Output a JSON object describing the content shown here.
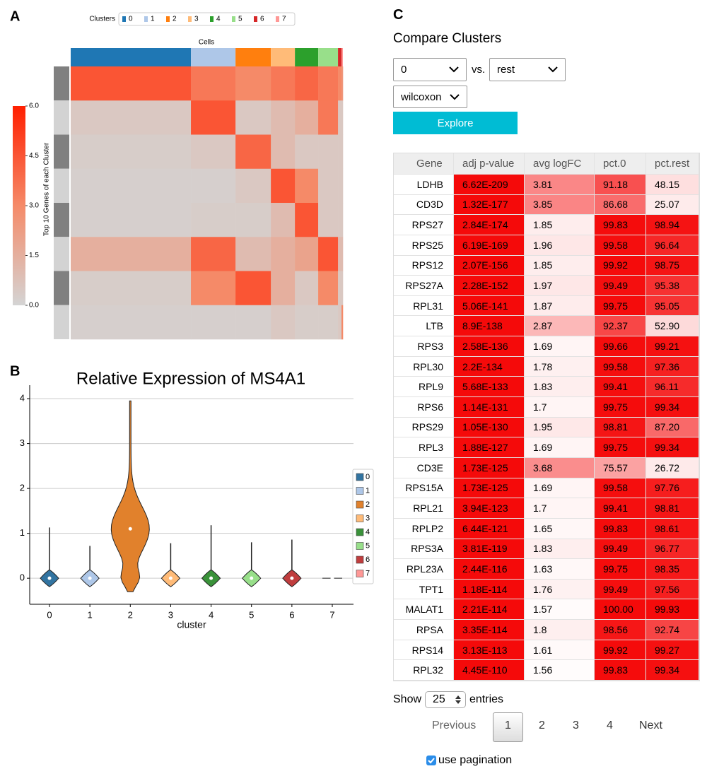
{
  "panel_labels": [
    "A",
    "B",
    "C"
  ],
  "chart_data": [
    {
      "type": "heatmap",
      "x_label": "Cells",
      "y_label": "Top 10 Genes of each Cluster",
      "legend_title": "Clusters",
      "clusters": [
        "0",
        "1",
        "2",
        "3",
        "4",
        "5",
        "6",
        "7"
      ],
      "colors": [
        "#1f77b4",
        "#aec7e8",
        "#ff7f0e",
        "#ffbb78",
        "#2ca02c",
        "#98df8a",
        "#d62728",
        "#ff9896"
      ],
      "cluster_sizes": [
        1105,
        410,
        325,
        221,
        214,
        182,
        32,
        13
      ],
      "values": [
        [
          4.5,
          3.5,
          3.0,
          3.5,
          4.0,
          3.5,
          3.0,
          2.5
        ],
        [
          0.5,
          4.5,
          0.5,
          1.0,
          1.5,
          3.5,
          0.5,
          0.5
        ],
        [
          0.3,
          0.5,
          4.0,
          1.0,
          0.5,
          0.5,
          0.5,
          0.5
        ],
        [
          0.2,
          0.2,
          0.5,
          4.5,
          3.0,
          0.5,
          0.5,
          0.5
        ],
        [
          0.2,
          0.3,
          0.3,
          1.0,
          4.5,
          0.5,
          0.5,
          0.5
        ],
        [
          1.5,
          4.0,
          1.0,
          1.5,
          2.0,
          4.5,
          1.0,
          1.0
        ],
        [
          0.3,
          3.0,
          4.5,
          1.5,
          0.5,
          3.0,
          0.5,
          0.5
        ],
        [
          0.2,
          0.2,
          0.2,
          0.5,
          0.3,
          0.3,
          0.5,
          3.0
        ]
      ],
      "colorbar_lim": [
        0,
        6
      ],
      "colorbar_ticks": [
        {
          "value": 0,
          "label": "0.0"
        },
        {
          "value": 1.5,
          "label": "1.5"
        },
        {
          "value": 3,
          "label": "3.0"
        },
        {
          "value": 4.5,
          "label": "4.5"
        },
        {
          "value": 6,
          "label": "6.0"
        }
      ],
      "colormap": [
        "#d4d4d4",
        "#f58a68",
        "#ff1f00"
      ]
    },
    {
      "type": "violin",
      "title": "Relative Expression of MS4A1",
      "x_label": "cluster",
      "categories": [
        "0",
        "1",
        "2",
        "3",
        "4",
        "5",
        "6",
        "7"
      ],
      "colors": [
        "#3274a1",
        "#aec7e8",
        "#e1812c",
        "#ffbb78",
        "#3a923a",
        "#98df8a",
        "#c03d3e",
        "#ff9896"
      ],
      "maxima": [
        1.13,
        0.72,
        3.95,
        0.78,
        1.18,
        0.8,
        0.86,
        0
      ],
      "medians": [
        0,
        0,
        1.1,
        0,
        0,
        0,
        0,
        0
      ],
      "ylim": [
        -0.58,
        4.3
      ],
      "yticks": [
        0,
        1,
        2,
        3,
        4
      ],
      "grid": true
    }
  ],
  "compare": {
    "title": "Compare Clusters",
    "group": "0",
    "vs": "vs.",
    "reference": "rest",
    "method": "wilcoxon",
    "button": "Explore",
    "table": {
      "columns": [
        "Gene",
        "adj p-value",
        "avg logFC",
        "pct.0",
        "pct.rest"
      ],
      "rows": [
        [
          "LDHB",
          "6.62E-209",
          "3.81",
          "91.18",
          "48.15"
        ],
        [
          "CD3D",
          "1.32E-177",
          "3.85",
          "86.68",
          "25.07"
        ],
        [
          "RPS27",
          "2.84E-174",
          "1.85",
          "99.83",
          "98.94"
        ],
        [
          "RPS25",
          "6.19E-169",
          "1.96",
          "99.58",
          "96.64"
        ],
        [
          "RPS12",
          "2.07E-156",
          "1.85",
          "99.92",
          "98.75"
        ],
        [
          "RPS27A",
          "2.28E-152",
          "1.97",
          "99.49",
          "95.38"
        ],
        [
          "RPL31",
          "5.06E-141",
          "1.87",
          "99.75",
          "95.05"
        ],
        [
          "LTB",
          "8.9E-138",
          "2.87",
          "92.37",
          "52.90"
        ],
        [
          "RPS3",
          "2.58E-136",
          "1.69",
          "99.66",
          "99.21"
        ],
        [
          "RPL30",
          "2.2E-134",
          "1.78",
          "99.58",
          "97.36"
        ],
        [
          "RPL9",
          "5.68E-133",
          "1.83",
          "99.41",
          "96.11"
        ],
        [
          "RPS6",
          "1.14E-131",
          "1.7",
          "99.75",
          "99.34"
        ],
        [
          "RPS29",
          "1.05E-130",
          "1.95",
          "98.81",
          "87.20"
        ],
        [
          "RPL3",
          "1.88E-127",
          "1.69",
          "99.75",
          "99.34"
        ],
        [
          "CD3E",
          "1.73E-125",
          "3.68",
          "75.57",
          "26.72"
        ],
        [
          "RPS15A",
          "1.73E-125",
          "1.69",
          "99.58",
          "97.76"
        ],
        [
          "RPL21",
          "3.94E-123",
          "1.7",
          "99.41",
          "98.81"
        ],
        [
          "RPLP2",
          "6.44E-121",
          "1.65",
          "99.83",
          "98.61"
        ],
        [
          "RPS3A",
          "3.81E-119",
          "1.83",
          "99.49",
          "96.77"
        ],
        [
          "RPL23A",
          "2.44E-116",
          "1.63",
          "99.75",
          "98.35"
        ],
        [
          "TPT1",
          "1.18E-114",
          "1.76",
          "99.49",
          "97.56"
        ],
        [
          "MALAT1",
          "2.21E-114",
          "1.57",
          "100.00",
          "99.93"
        ],
        [
          "RPSA",
          "3.35E-114",
          "1.8",
          "98.56",
          "92.74"
        ],
        [
          "RPS14",
          "3.13E-113",
          "1.61",
          "99.92",
          "99.27"
        ],
        [
          "RPL32",
          "4.45E-110",
          "1.56",
          "99.83",
          "99.34"
        ]
      ]
    },
    "show": "Show",
    "page_size": "25",
    "entries": "entries",
    "pagination": {
      "previous": "Previous",
      "pages": [
        "1",
        "2",
        "3",
        "4"
      ],
      "next": "Next"
    },
    "use_pagination": "use pagination"
  }
}
